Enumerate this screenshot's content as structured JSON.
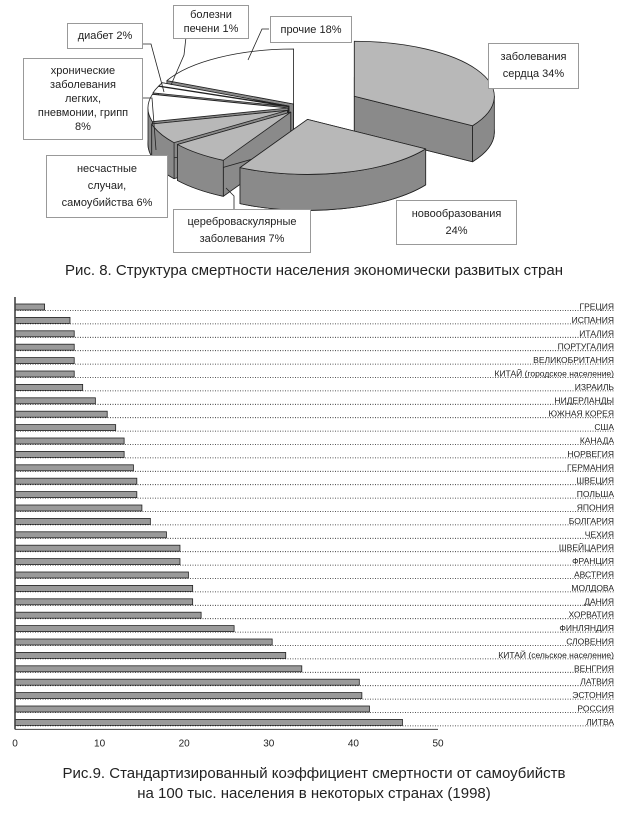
{
  "chart_data": [
    {
      "type": "pie",
      "style": "3d-exploded",
      "title": "Рис. 8. Структура смертности населения экономически развитых стран",
      "slices": [
        {
          "name": "heart",
          "label": "заболевания сердца 34%",
          "value": 34,
          "color": "#b8b8b8",
          "side": "#8a8a8a"
        },
        {
          "name": "neoplasms",
          "label": "новообразования 24%",
          "value": 24,
          "color": "#b8b8b8",
          "side": "#8a8a8a"
        },
        {
          "name": "cerebrovascular",
          "label": "цереброваскулярные заболевания 7%",
          "value": 7,
          "color": "#b8b8b8",
          "side": "#8a8a8a"
        },
        {
          "name": "accidents",
          "label": "несчастные случаи, самоубийства 6%",
          "value": 6,
          "color": "#b8b8b8",
          "side": "#8a8a8a"
        },
        {
          "name": "lung",
          "label": "хронические заболевания легких, пневмонии, грипп 8%",
          "value": 8,
          "color": "#ffffff",
          "side": "#8a8a8a"
        },
        {
          "name": "diabetes",
          "label": "диабет 2%",
          "value": 2,
          "color": "#ffffff",
          "side": "#8a8a8a"
        },
        {
          "name": "liver",
          "label": "болезни печени 1%",
          "value": 1,
          "color": "#ffffff",
          "side": "#8a8a8a"
        },
        {
          "name": "other",
          "label": "прочие 18%",
          "value": 18,
          "color": "#ffffff",
          "side": "#8a8a8a"
        }
      ]
    },
    {
      "type": "bar",
      "orientation": "horizontal",
      "title": "Рис.9. Стандартизированный коэффициент смертности от самоубийств на 100 тыс. населения в некоторых странах (1998)",
      "title_lines": [
        "Рис.9. Стандартизированный коэффициент смертности от самоубийств",
        "на 100 тыс. населения в некоторых странах (1998)"
      ],
      "xlim": [
        0,
        50
      ],
      "xticks": [
        0,
        10,
        20,
        30,
        40,
        50
      ],
      "bar_color": "#9a9a9a",
      "categories": [
        "ГРЕЦИЯ",
        "ИСПАНИЯ",
        "ИТАЛИЯ",
        "ПОРТУГАЛИЯ",
        "ВЕЛИКОБРИТАНИЯ",
        "КИТАЙ (городское население)",
        "ИЗРАИЛЬ",
        "НИДЕРЛАНДЫ",
        "ЮЖНАЯ КОРЕЯ",
        "США",
        "КАНАДА",
        "НОРВЕГИЯ",
        "ГЕРМАНИЯ",
        "ШВЕЦИЯ",
        "ПОЛЬША",
        "ЯПОНИЯ",
        "БОЛГАРИЯ",
        "ЧЕХИЯ",
        "ШВЕЙЦАРИЯ",
        "ФРАНЦИЯ",
        "АВСТРИЯ",
        "МОЛДОВА",
        "ДАНИЯ",
        "ХОРВАТИЯ",
        "ФИНЛЯНДИЯ",
        "СЛОВЕНИЯ",
        "КИТАЙ (сельское население)",
        "ВЕНГРИЯ",
        "ЛАТВИЯ",
        "ЭСТОНИЯ",
        "РОССИЯ",
        "ЛИТВА"
      ],
      "values": [
        3.5,
        6.5,
        7.0,
        7.0,
        7.0,
        7.0,
        8.0,
        9.5,
        10.9,
        11.9,
        12.9,
        12.9,
        14.0,
        14.4,
        14.4,
        15.0,
        16.0,
        17.9,
        19.5,
        19.5,
        20.5,
        21.0,
        21.0,
        22.0,
        25.9,
        30.4,
        32.0,
        33.9,
        40.7,
        41.0,
        41.9,
        45.8
      ]
    }
  ],
  "pie_labels": {
    "diabetes": "диабет 2%",
    "liver": [
      "болезни",
      "печени 1%"
    ],
    "other": "прочие 18%",
    "heart": [
      "заболевания",
      "сердца 34%"
    ],
    "lung": [
      "хронические",
      "заболевания",
      "легких,",
      "пневмонии, грипп",
      "8%"
    ],
    "accidents": [
      "несчастные",
      "случаи,",
      "самоубийства 6%"
    ],
    "cerebrovascular": [
      "цереброваскулярные",
      "заболевания 7%"
    ],
    "neoplasms": [
      "новообразования",
      "24%"
    ]
  }
}
